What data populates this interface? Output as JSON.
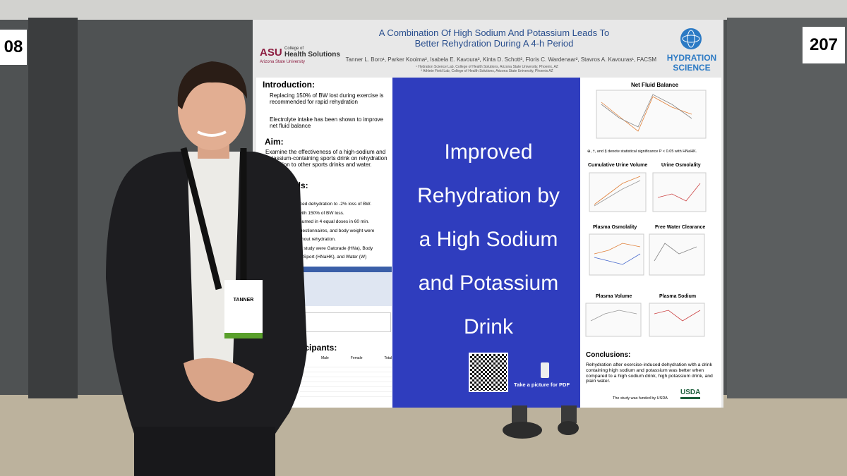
{
  "booth_numbers": [
    "08",
    "207"
  ],
  "poster": {
    "title_lines": [
      "A Combination Of High Sodium And Potassium Leads To",
      "Better Rehydration During A 4-h Period"
    ],
    "authors": "Tanner L. Boro¹, Parker Kooima², Isabela E. Kavoura², Kinta D. Schott², Floris C. Wardenaar², Stavros A. Kavouras¹, FACSM",
    "affiliations": [
      "¹ Hydration Science Lab, College of Health Solutions, Arizona State University, Phoenix, AZ",
      "² Athlete Field Lab, College of Health Solutions, Arizona State University, Phoenix AZ"
    ],
    "left_logo": {
      "mark": "ASU",
      "line1": "College of",
      "line2": "Health Solutions",
      "line3": "Arizona State University"
    },
    "right_logo": [
      "HYDRATION",
      "SCIENCE"
    ],
    "introduction": {
      "heading": "Introduction:",
      "bullets": [
        "Replacing 150% of BW lost during exercise is recommended for rapid rehydration",
        "Electrolyte intake has been shown to improve net fluid balance"
      ]
    },
    "aim": {
      "heading": "Aim:",
      "text": "Examine the effectiveness of a high-sodium and potassium-containing sports drink on rehydration in relation to other sports drinks and water."
    },
    "methods": {
      "heading": "hods:",
      "lines": [
        "nduced dehydration to -2% loss of BW.",
        "on with 150% of BW loss.",
        "consumed in 4 equal doses in 60 min.",
        "e, questionnaires, and body weight were",
        "roughout rehydration.",
        "n the study were Gatorade (HNa), Body",
        "GoodSport (HNaHK), and Water (W)"
      ]
    },
    "participants": {
      "heading": "icipants:",
      "columns": [
        "Male",
        "Female",
        "Total"
      ]
    },
    "center_lines": [
      "Improved",
      "Rehydration by",
      "a High Sodium",
      "and Potassium",
      "Drink"
    ],
    "qr_caption": "Take a picture for PDF",
    "charts": {
      "net_fluid_balance": "Net Fluid Balance",
      "significance_note": "⊕, †, and § denote statistical significance P < 0.05 with HNaHK.",
      "titles": [
        "Cumulative Urine Volume",
        "Urine Osmolality",
        "Plasma Osmolality",
        "Free Water Clearance",
        "Plasma Volume",
        "Plasma Sodium"
      ]
    },
    "conclusions": {
      "heading": "Conclusions:",
      "text": "Rehydration after exercise-induced dehydration with a drink containing high sodium and potassium was better when compared to a high sodium drink, high potassium drink, and plain water."
    },
    "funding": "The study was funded by USDA",
    "funder_logo": "USDA"
  },
  "badge": {
    "name": "TANNER"
  }
}
